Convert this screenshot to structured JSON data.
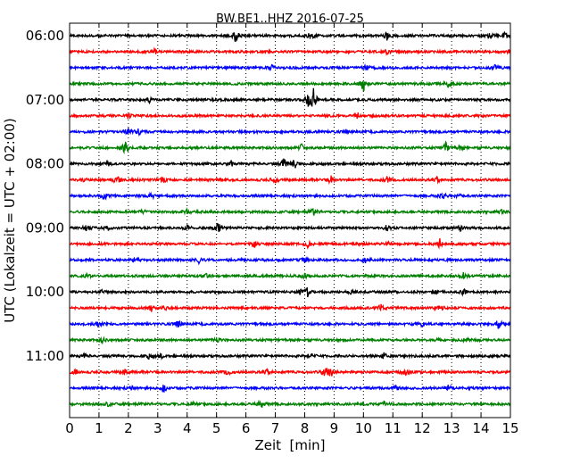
{
  "chart_data": {
    "type": "line",
    "title": "BW.BE1..HHZ 2016-07-25",
    "xlabel": "Zeit  [min]",
    "ylabel": "UTC (Lokalzeit = UTC + 02:00)",
    "xlim": [
      0,
      15
    ],
    "x_ticks": [
      "0",
      "1",
      "2",
      "3",
      "4",
      "5",
      "6",
      "7",
      "8",
      "9",
      "10",
      "11",
      "12",
      "13",
      "14",
      "15"
    ],
    "y_ticks": [
      {
        "label": "06:00",
        "row": 0
      },
      {
        "label": "07:00",
        "row": 4
      },
      {
        "label": "08:00",
        "row": 8
      },
      {
        "label": "09:00",
        "row": 12
      },
      {
        "label": "10:00",
        "row": 16
      },
      {
        "label": "11:00",
        "row": 20
      }
    ],
    "grid": "vertical dotted",
    "trace_interval_min": 15,
    "series_colors": [
      "#000000",
      "#ff0000",
      "#0000ff",
      "#008000"
    ],
    "rows": [
      {
        "events": [
          [
            5.65,
            7
          ],
          [
            8.2,
            4
          ],
          [
            10.8,
            5
          ],
          [
            14.3,
            4
          ],
          [
            14.8,
            3
          ]
        ]
      },
      {
        "events": [
          [
            2.9,
            3
          ],
          [
            10.8,
            3
          ],
          [
            15.0,
            3
          ]
        ]
      },
      {
        "events": [
          [
            6.9,
            3
          ],
          [
            10.1,
            3
          ],
          [
            14.5,
            6
          ]
        ]
      },
      {
        "events": [
          [
            10.0,
            9
          ],
          [
            12.9,
            5
          ]
        ]
      },
      {
        "events": [
          [
            2.7,
            3
          ],
          [
            8.3,
            12
          ],
          [
            8.1,
            8
          ]
        ]
      },
      {
        "events": [
          [
            2.0,
            3
          ],
          [
            9.8,
            3
          ]
        ]
      },
      {
        "events": [
          [
            2.0,
            4
          ],
          [
            2.35,
            3
          ]
        ]
      },
      {
        "events": [
          [
            1.9,
            10
          ],
          [
            7.9,
            4
          ],
          [
            12.8,
            6
          ],
          [
            13.3,
            3
          ]
        ]
      },
      {
        "events": [
          [
            1.3,
            3
          ],
          [
            7.3,
            6
          ],
          [
            7.65,
            6
          ],
          [
            5.5,
            3
          ]
        ]
      },
      {
        "events": [
          [
            0.5,
            3
          ],
          [
            1.6,
            5
          ],
          [
            3.2,
            3
          ],
          [
            7.0,
            3
          ],
          [
            8.9,
            5
          ],
          [
            10.8,
            3
          ],
          [
            12.5,
            3
          ]
        ]
      },
      {
        "events": [
          [
            1.2,
            5
          ],
          [
            2.8,
            3
          ],
          [
            12.7,
            4
          ],
          [
            13.2,
            3
          ]
        ]
      },
      {
        "events": [
          [
            2.5,
            2
          ],
          [
            4.0,
            3
          ],
          [
            8.3,
            4
          ],
          [
            14.7,
            3
          ]
        ]
      },
      {
        "events": [
          [
            0.6,
            4
          ],
          [
            1.3,
            3
          ],
          [
            4.0,
            3
          ],
          [
            5.05,
            9
          ],
          [
            10.8,
            3
          ],
          [
            13.3,
            3
          ]
        ]
      },
      {
        "events": [
          [
            6.3,
            3
          ],
          [
            8.1,
            3
          ],
          [
            10.9,
            3
          ],
          [
            12.6,
            6
          ]
        ]
      },
      {
        "events": [
          [
            2.2,
            3
          ],
          [
            4.4,
            3
          ],
          [
            8.0,
            3
          ],
          [
            10.1,
            4
          ]
        ]
      },
      {
        "events": [
          [
            0.6,
            2
          ],
          [
            4.7,
            3
          ],
          [
            8.0,
            3
          ],
          [
            13.4,
            3
          ]
        ]
      },
      {
        "events": [
          [
            1.1,
            2
          ],
          [
            7.9,
            5
          ],
          [
            8.1,
            5
          ],
          [
            9.6,
            3
          ],
          [
            12.4,
            3
          ],
          [
            13.4,
            4
          ]
        ]
      },
      {
        "events": [
          [
            2.8,
            4
          ],
          [
            3.2,
            3
          ],
          [
            10.6,
            4
          ],
          [
            12.6,
            5
          ]
        ]
      },
      {
        "events": [
          [
            1.0,
            3
          ],
          [
            3.7,
            4
          ],
          [
            14.6,
            6
          ],
          [
            12.0,
            3
          ]
        ]
      },
      {
        "events": [
          [
            1.1,
            3
          ],
          [
            5.0,
            3
          ],
          [
            12.5,
            3
          ],
          [
            13.5,
            3
          ]
        ]
      },
      {
        "events": [
          [
            0.5,
            2
          ],
          [
            2.7,
            3
          ],
          [
            3.1,
            3
          ],
          [
            8.2,
            4
          ],
          [
            10.7,
            3
          ]
        ]
      },
      {
        "events": [
          [
            0.2,
            3
          ],
          [
            1.9,
            3
          ],
          [
            5.4,
            3
          ],
          [
            6.7,
            3
          ],
          [
            8.7,
            6
          ],
          [
            8.9,
            4
          ],
          [
            11.4,
            5
          ]
        ]
      },
      {
        "events": [
          [
            3.2,
            5
          ],
          [
            2.1,
            2
          ],
          [
            11.1,
            3
          ],
          [
            12.9,
            3
          ]
        ]
      },
      {
        "events": [
          [
            1.3,
            2
          ],
          [
            4.2,
            3
          ],
          [
            6.5,
            6
          ],
          [
            10.7,
            3
          ]
        ]
      }
    ]
  }
}
